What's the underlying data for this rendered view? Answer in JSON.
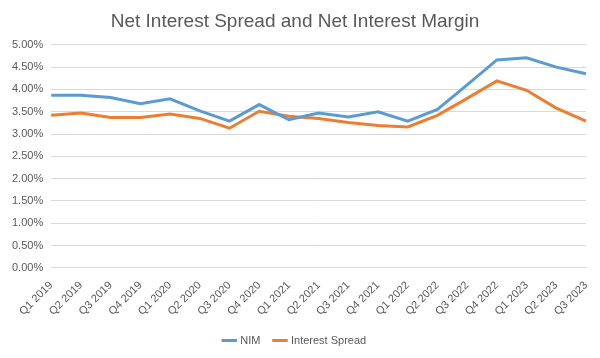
{
  "chart_data": {
    "type": "line",
    "title": "Net Interest Spread and Net Interest Margin",
    "categories": [
      "Q1 2019",
      "Q2 2019",
      "Q3 2019",
      "Q4 2019",
      "Q1 2020",
      "Q2 2020",
      "Q3 2020",
      "Q4 2020",
      "Q1 2021",
      "Q2 2021",
      "Q3 2021",
      "Q4 2021",
      "Q1 2022",
      "Q2 2022",
      "Q3 2022",
      "Q4 2022",
      "Q1 2023",
      "Q2 2023",
      "Q3 2023"
    ],
    "series": [
      {
        "name": "NIM",
        "color": "#5b9bd5",
        "values": [
          3.87,
          3.87,
          3.82,
          3.68,
          3.79,
          3.52,
          3.29,
          3.66,
          3.32,
          3.47,
          3.38,
          3.5,
          3.29,
          3.55,
          4.1,
          4.66,
          4.71,
          4.5,
          4.35
        ]
      },
      {
        "name": "Interest Spread",
        "color": "#ed7d31",
        "values": [
          3.42,
          3.47,
          3.37,
          3.37,
          3.45,
          3.35,
          3.13,
          3.51,
          3.4,
          3.35,
          3.26,
          3.19,
          3.16,
          3.42,
          3.8,
          4.19,
          3.98,
          3.58,
          3.29
        ]
      }
    ],
    "ylim": [
      0,
      5
    ],
    "yticks": [
      {
        "value": 0,
        "label": "0.00%"
      },
      {
        "value": 0.5,
        "label": "0.50%"
      },
      {
        "value": 1,
        "label": "1.00%"
      },
      {
        "value": 1.5,
        "label": "1.50%"
      },
      {
        "value": 2,
        "label": "2.00%"
      },
      {
        "value": 2.5,
        "label": "2.50%"
      },
      {
        "value": 3,
        "label": "3.00%"
      },
      {
        "value": 3.5,
        "label": "3.50%"
      },
      {
        "value": 4,
        "label": "4.00%"
      },
      {
        "value": 4.5,
        "label": "4.50%"
      },
      {
        "value": 5,
        "label": "5.00%"
      }
    ],
    "grid": true,
    "legend": "bottom"
  }
}
